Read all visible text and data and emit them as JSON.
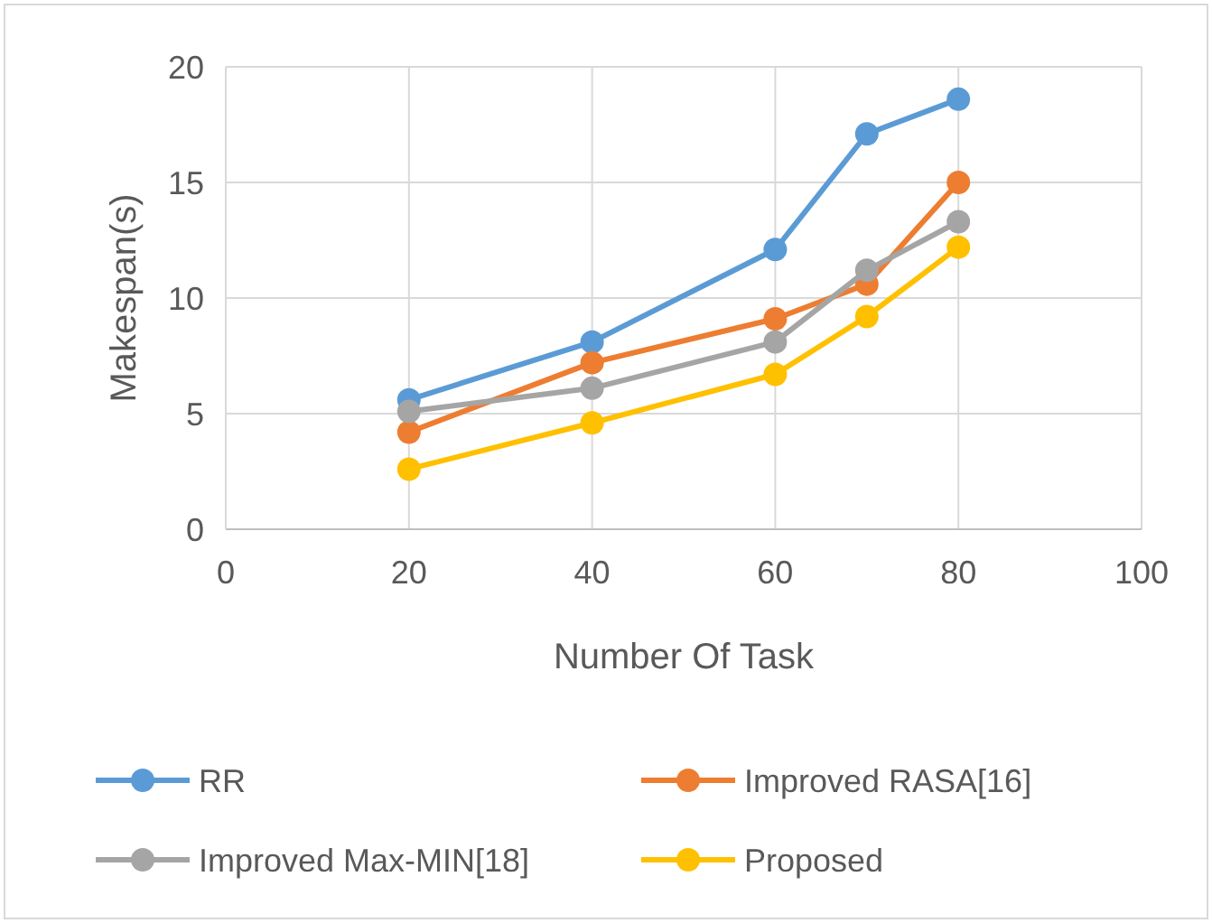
{
  "chart_data": {
    "type": "line",
    "xlabel": "Number Of Task",
    "ylabel": "Makespan(s)",
    "x": [
      20,
      40,
      60,
      70,
      80
    ],
    "xlim": [
      0,
      100
    ],
    "xticks": [
      0,
      20,
      40,
      60,
      80,
      100
    ],
    "ylim": [
      0,
      20
    ],
    "yticks": [
      0,
      5,
      10,
      15,
      20
    ],
    "grid": true,
    "legend": "bottom",
    "marker": "circle",
    "line_style": "solid",
    "series": [
      {
        "name": "RR",
        "color": "#5b9bd5",
        "values": [
          5.6,
          8.1,
          12.1,
          17.1,
          18.6
        ]
      },
      {
        "name": "Improved RASA[16]",
        "color": "#ed7d31",
        "values": [
          4.2,
          7.2,
          9.1,
          10.6,
          15.0
        ]
      },
      {
        "name": "Improved Max-MIN[18]",
        "color": "#a5a5a5",
        "values": [
          5.1,
          6.1,
          8.1,
          11.2,
          13.3
        ]
      },
      {
        "name": "Proposed",
        "color": "#ffc000",
        "values": [
          2.6,
          4.6,
          6.7,
          9.2,
          12.2
        ]
      }
    ]
  }
}
